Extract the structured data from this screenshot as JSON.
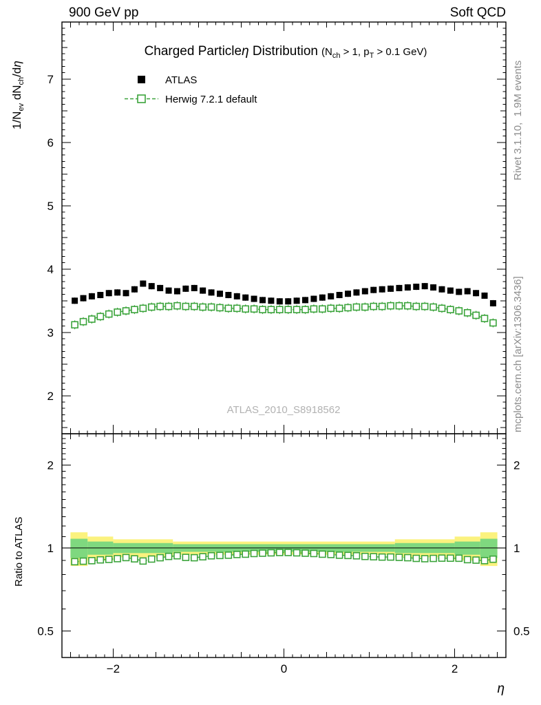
{
  "header": {
    "left": "900 GeV pp",
    "right": "Soft QCD"
  },
  "title": {
    "p1": "Charged Particle",
    "p2": "η",
    "p3": " Distribution",
    "p4": "(N",
    "p5": "ch",
    "p6": " > 1, p",
    "p7": "T",
    "p8": " > 0.1 GeV)"
  },
  "legend": [
    {
      "label": "ATLAS"
    },
    {
      "label": "Herwig 7.2.1 default"
    }
  ],
  "ylabel_parts": {
    "p1": "1/N",
    "p2": "ev",
    "p3": " dN",
    "p4": "ch",
    "p5": "/d",
    "p6": "η"
  },
  "ratio_label": "Ratio to ATLAS",
  "xlabel": "η",
  "watermark": "ATLAS_2010_S8918562",
  "side_texts": {
    "top": "Rivet 3.1.10,  1.9M events",
    "bottom": "mcplots.cern.ch [arXiv:1306.3436]"
  },
  "colors": {
    "atlas": "#000000",
    "herwig": "#3aa33a",
    "band_yellow": "#fbf27e",
    "band_green": "#7fd87f"
  },
  "chart_data": {
    "type": "line",
    "title": "Charged Particle η Distribution (Nch > 1, pT > 0.1 GeV)",
    "xlabel": "η",
    "ylabel": "1/Nev dNch/dη",
    "ratio_ylabel": "Ratio to ATLAS",
    "legend_position": "top-left",
    "grid": false,
    "x": [
      -2.45,
      -2.35,
      -2.25,
      -2.15,
      -2.05,
      -1.95,
      -1.85,
      -1.75,
      -1.65,
      -1.55,
      -1.45,
      -1.35,
      -1.25,
      -1.15,
      -1.05,
      -0.95,
      -0.85,
      -0.75,
      -0.65,
      -0.55,
      -0.45,
      -0.35,
      -0.25,
      -0.15,
      -0.05,
      0.05,
      0.15,
      0.25,
      0.35,
      0.45,
      0.55,
      0.65,
      0.75,
      0.85,
      0.95,
      1.05,
      1.15,
      1.25,
      1.35,
      1.45,
      1.55,
      1.65,
      1.75,
      1.85,
      1.95,
      2.05,
      2.15,
      2.25,
      2.35,
      2.45
    ],
    "series": [
      {
        "name": "ATLAS",
        "marker": "filled-square",
        "color": "#000000",
        "values": [
          3.5,
          3.54,
          3.57,
          3.59,
          3.62,
          3.63,
          3.62,
          3.68,
          3.77,
          3.73,
          3.7,
          3.66,
          3.65,
          3.69,
          3.7,
          3.66,
          3.63,
          3.61,
          3.59,
          3.57,
          3.55,
          3.53,
          3.51,
          3.5,
          3.49,
          3.49,
          3.5,
          3.51,
          3.53,
          3.55,
          3.57,
          3.59,
          3.61,
          3.63,
          3.65,
          3.67,
          3.68,
          3.69,
          3.7,
          3.71,
          3.72,
          3.73,
          3.71,
          3.68,
          3.66,
          3.64,
          3.65,
          3.62,
          3.58,
          3.46
        ]
      },
      {
        "name": "Herwig 7.2.1 default",
        "marker": "open-square",
        "color": "#3aa33a",
        "linestyle": "dashed",
        "values": [
          3.12,
          3.17,
          3.21,
          3.25,
          3.29,
          3.32,
          3.34,
          3.36,
          3.38,
          3.4,
          3.41,
          3.41,
          3.42,
          3.41,
          3.41,
          3.4,
          3.4,
          3.39,
          3.38,
          3.38,
          3.37,
          3.37,
          3.36,
          3.36,
          3.36,
          3.36,
          3.36,
          3.36,
          3.37,
          3.37,
          3.38,
          3.38,
          3.39,
          3.4,
          3.4,
          3.41,
          3.41,
          3.42,
          3.42,
          3.42,
          3.41,
          3.41,
          3.4,
          3.38,
          3.36,
          3.34,
          3.31,
          3.27,
          3.22,
          3.15
        ]
      }
    ],
    "ratio_bands": {
      "yellow": [
        [
          -2.5,
          -2.3,
          0.14
        ],
        [
          -2.3,
          -2.0,
          0.1
        ],
        [
          -2.0,
          -1.3,
          0.075
        ],
        [
          -1.3,
          1.3,
          0.055
        ],
        [
          1.3,
          2.0,
          0.075
        ],
        [
          2.0,
          2.3,
          0.1
        ],
        [
          2.3,
          2.5,
          0.14
        ]
      ],
      "green": [
        [
          -2.5,
          -2.3,
          0.08
        ],
        [
          -2.3,
          -2.0,
          0.055
        ],
        [
          -2.0,
          -1.3,
          0.042
        ],
        [
          -1.3,
          1.3,
          0.032
        ],
        [
          1.3,
          2.0,
          0.042
        ],
        [
          2.0,
          2.3,
          0.055
        ],
        [
          2.3,
          2.5,
          0.08
        ]
      ]
    },
    "axes": {
      "xlim": [
        -2.6,
        2.6
      ],
      "xticks": [
        -2,
        0,
        2
      ],
      "main_ylim": [
        1.4,
        7.9
      ],
      "main_yticks": [
        2,
        3,
        4,
        5,
        6,
        7
      ],
      "main_scale": "linear",
      "ratio_ylim": [
        0.4,
        2.6
      ],
      "ratio_yticks": [
        0.5,
        1,
        2
      ],
      "ratio_scale": "log"
    }
  }
}
